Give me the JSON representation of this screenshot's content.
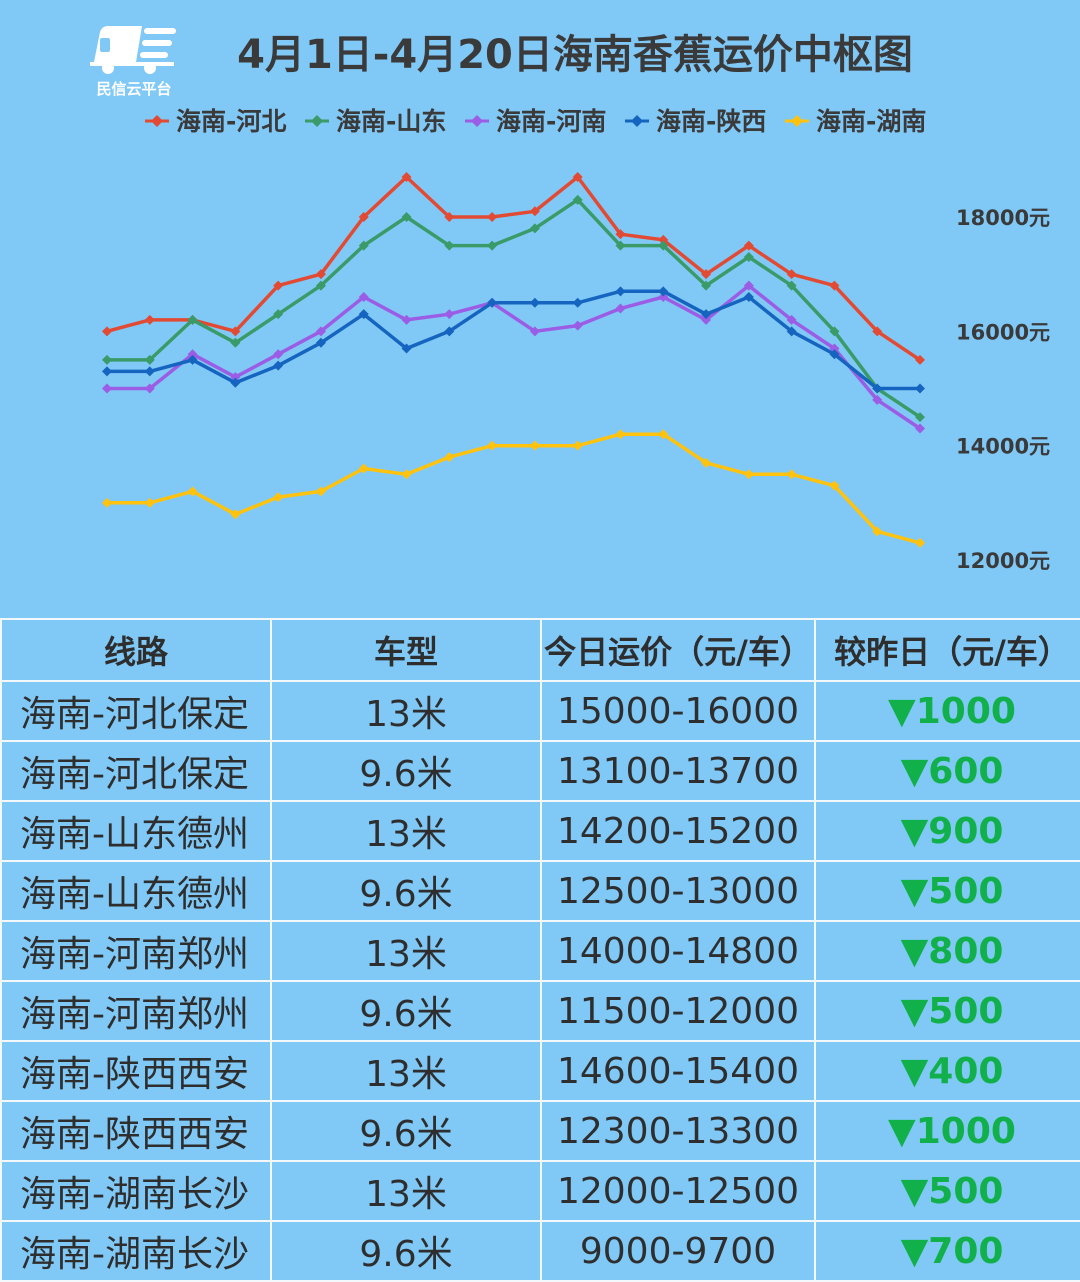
{
  "logo": {
    "text": "民信云平台"
  },
  "chart_data": {
    "type": "line",
    "title": "4月1日-4月20日海南香蕉运价中枢图",
    "x": [
      1,
      2,
      3,
      4,
      5,
      6,
      7,
      8,
      9,
      10,
      11,
      12,
      13,
      14,
      15,
      16,
      17,
      18,
      19,
      20
    ],
    "ylim": [
      12000,
      18000
    ],
    "yticks": [
      "18000元",
      "16000元",
      "14000元",
      "12000元"
    ],
    "ytick_values": [
      18000,
      16000,
      14000,
      12000
    ],
    "legend_position": "top",
    "grid": false,
    "series": [
      {
        "name": "海南-河北",
        "color": "#e24a33",
        "values": [
          16000,
          16200,
          16200,
          16000,
          16800,
          17000,
          18000,
          18700,
          18000,
          18000,
          18100,
          18700,
          17700,
          17600,
          17000,
          17500,
          17000,
          16800,
          16000,
          15500
        ]
      },
      {
        "name": "海南-山东",
        "color": "#3a9a68",
        "values": [
          15500,
          15500,
          16200,
          15800,
          16300,
          16800,
          17500,
          18000,
          17500,
          17500,
          17800,
          18300,
          17500,
          17500,
          16800,
          17300,
          16800,
          16000,
          15000,
          14500
        ]
      },
      {
        "name": "海南-河南",
        "color": "#9b5de5",
        "values": [
          15000,
          15000,
          15600,
          15200,
          15600,
          16000,
          16600,
          16200,
          16300,
          16500,
          16000,
          16100,
          16400,
          16600,
          16200,
          16800,
          16200,
          15700,
          14800,
          14300
        ]
      },
      {
        "name": "海南-陕西",
        "color": "#1565c0",
        "values": [
          15300,
          15300,
          15500,
          15100,
          15400,
          15800,
          16300,
          15700,
          16000,
          16500,
          16500,
          16500,
          16700,
          16700,
          16300,
          16600,
          16000,
          15600,
          15000,
          15000
        ]
      },
      {
        "name": "海南-湖南",
        "color": "#ffc20e",
        "values": [
          13000,
          13000,
          13200,
          12800,
          13100,
          13200,
          13600,
          13500,
          13800,
          14000,
          14000,
          14000,
          14200,
          14200,
          13700,
          13500,
          13500,
          13300,
          12500,
          12300
        ]
      }
    ]
  },
  "table": {
    "headers": [
      "线路",
      "车型",
      "今日运价（元/车）",
      "较昨日（元/车）"
    ],
    "rows": [
      {
        "route": "海南-河北保定",
        "vehicle": "13米",
        "price": "15000-16000",
        "change": "▼1000"
      },
      {
        "route": "海南-河北保定",
        "vehicle": "9.6米",
        "price": "13100-13700",
        "change": "▼600"
      },
      {
        "route": "海南-山东德州",
        "vehicle": "13米",
        "price": "14200-15200",
        "change": "▼900"
      },
      {
        "route": "海南-山东德州",
        "vehicle": "9.6米",
        "price": "12500-13000",
        "change": "▼500"
      },
      {
        "route": "海南-河南郑州",
        "vehicle": "13米",
        "price": "14000-14800",
        "change": "▼800"
      },
      {
        "route": "海南-河南郑州",
        "vehicle": "9.6米",
        "price": "11500-12000",
        "change": "▼500"
      },
      {
        "route": "海南-陕西西安",
        "vehicle": "13米",
        "price": "14600-15400",
        "change": "▼400"
      },
      {
        "route": "海南-陕西西安",
        "vehicle": "9.6米",
        "price": "12300-13300",
        "change": "▼1000"
      },
      {
        "route": "海南-湖南长沙",
        "vehicle": "13米",
        "price": "12000-12500",
        "change": "▼500"
      },
      {
        "route": "海南-湖南长沙",
        "vehicle": "9.6米",
        "price": "9000-9700",
        "change": "▼700"
      }
    ]
  }
}
